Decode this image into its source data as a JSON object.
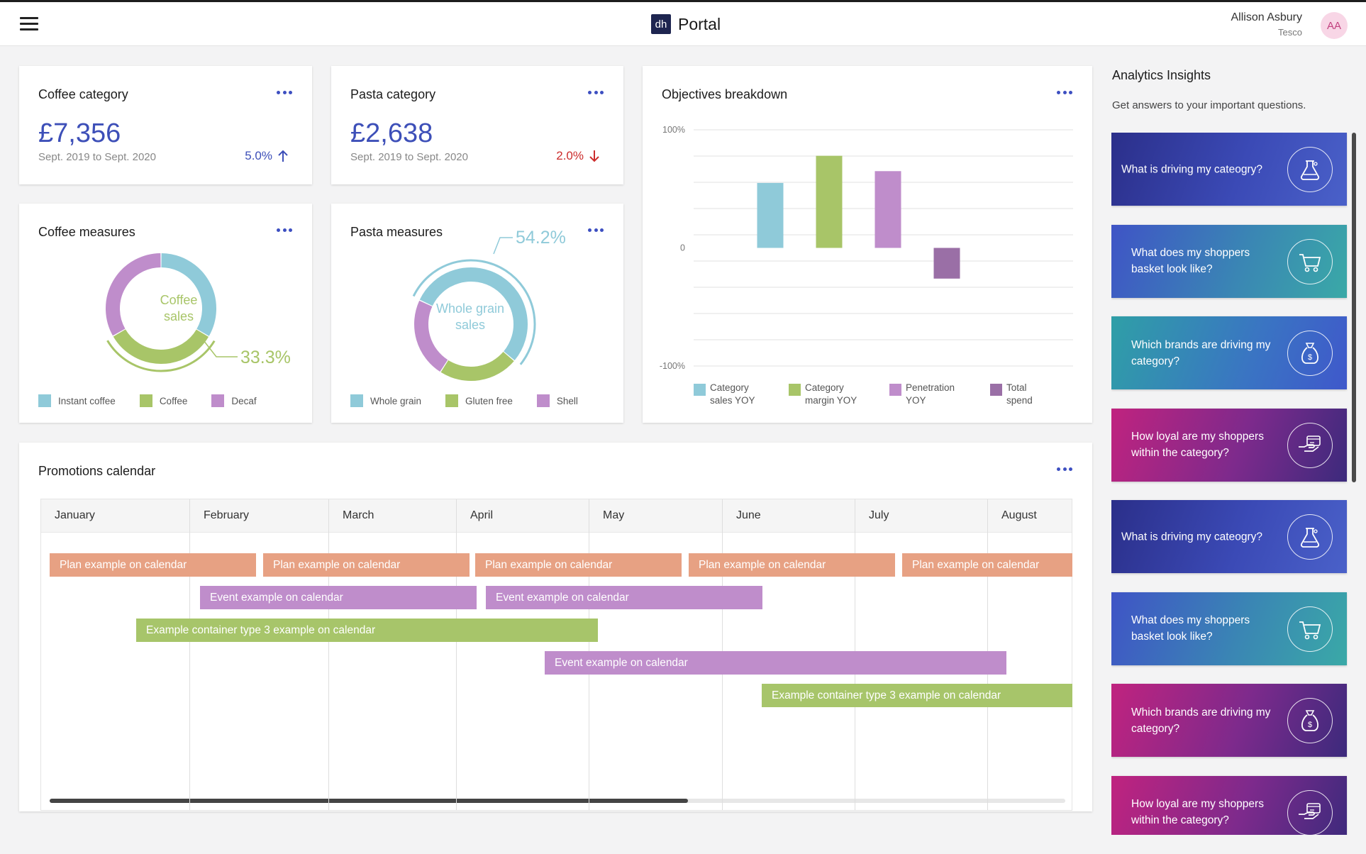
{
  "header": {
    "logo_text": "dh",
    "app_title": "Portal",
    "user_name": "Allison Asbury",
    "user_org": "Tesco",
    "user_initials": "AA"
  },
  "coffee_category": {
    "title": "Coffee category",
    "value": "£7,356",
    "period": "Sept. 2019 to Sept. 2020",
    "change": "5.0%",
    "direction": "up",
    "change_color": "#3d4fb8"
  },
  "pasta_category": {
    "title": "Pasta category",
    "value": "£2,638",
    "period": "Sept. 2019 to Sept. 2020",
    "change": "2.0%",
    "direction": "down",
    "change_color": "#cc2d2d"
  },
  "coffee_measures": {
    "title": "Coffee measures",
    "center_label_1": "Coffee",
    "center_label_2": "sales",
    "highlight_value": "33.3%",
    "segments": [
      {
        "label": "Instant coffee",
        "value": 33.4,
        "color": "#8fcad9"
      },
      {
        "label": "Coffee",
        "value": 33.3,
        "color": "#a8c568"
      },
      {
        "label": "Decaf",
        "value": 33.3,
        "color": "#bf8dcb"
      }
    ],
    "highlight_index": 1
  },
  "pasta_measures": {
    "title": "Pasta measures",
    "center_label_1": "Whole grain",
    "center_label_2": "sales",
    "highlight_value": "54.2%",
    "segments": [
      {
        "label": "Whole grain",
        "value": 54.2,
        "color": "#8fcad9"
      },
      {
        "label": "Gluten free",
        "value": 22.9,
        "color": "#a8c568"
      },
      {
        "label": "Shell",
        "value": 22.9,
        "color": "#bf8dcb"
      }
    ],
    "highlight_index": 0
  },
  "chart_data": {
    "type": "bar",
    "title": "Objectives breakdown",
    "categories": [
      "Category sales YOY",
      "Category margin YOY",
      "Penetration YOY",
      "Total spend"
    ],
    "legend_lines": [
      [
        "Category",
        "sales YOY"
      ],
      [
        "Category",
        "margin YOY"
      ],
      [
        "Penetration",
        "YOY"
      ],
      [
        "Total",
        "spend"
      ]
    ],
    "values": [
      55,
      78,
      65,
      -26
    ],
    "colors": [
      "#8fcad9",
      "#a8c568",
      "#bf8dcb",
      "#9a6fa6"
    ],
    "ylim": [
      -100,
      100
    ],
    "ytick_labels": [
      "100%",
      "0",
      "-100%"
    ],
    "grid": true,
    "legend_position": "bottom"
  },
  "promotions": {
    "title": "Promotions calendar",
    "months": [
      "January",
      "February",
      "March",
      "April",
      "May",
      "June",
      "July",
      "August"
    ],
    "events": [
      {
        "label": "Plan example on calendar",
        "type": "plan"
      },
      {
        "label": "Plan example on calendar",
        "type": "plan"
      },
      {
        "label": "Plan example on calendar",
        "type": "plan"
      },
      {
        "label": "Plan example on calendar",
        "type": "plan"
      },
      {
        "label": "Plan example on calendar",
        "type": "plan"
      },
      {
        "label": "Event example on calendar",
        "type": "event"
      },
      {
        "label": "Event example on calendar",
        "type": "event"
      },
      {
        "label": "Example container type 3 example on calendar",
        "type": "container"
      },
      {
        "label": "Event example on calendar",
        "type": "event"
      },
      {
        "label": "Example container type 3 example on calendar",
        "type": "container"
      }
    ]
  },
  "insights": {
    "title": "Analytics Insights",
    "subtitle": "Get answers to your important questions.",
    "cards": [
      {
        "text": "What is driving my cateogry?",
        "icon": "flask-icon",
        "style": "g1"
      },
      {
        "text": "What does my shoppers basket look like?",
        "icon": "cart-icon",
        "style": "g2"
      },
      {
        "text": "Which brands are driving my category?",
        "icon": "money-bag-icon",
        "style": "g3"
      },
      {
        "text": "How loyal are my shoppers within the category?",
        "icon": "hand-card-icon",
        "style": "g4"
      },
      {
        "text": "What is driving my cateogry?",
        "icon": "flask-icon",
        "style": "g1"
      },
      {
        "text": "What does my shoppers basket look like?",
        "icon": "cart-icon",
        "style": "g2"
      },
      {
        "text": "Which brands are driving my category?",
        "icon": "money-bag-icon",
        "style": "g4"
      },
      {
        "text": "How loyal are my shoppers within the category?",
        "icon": "hand-card-icon",
        "style": "g4"
      }
    ]
  }
}
